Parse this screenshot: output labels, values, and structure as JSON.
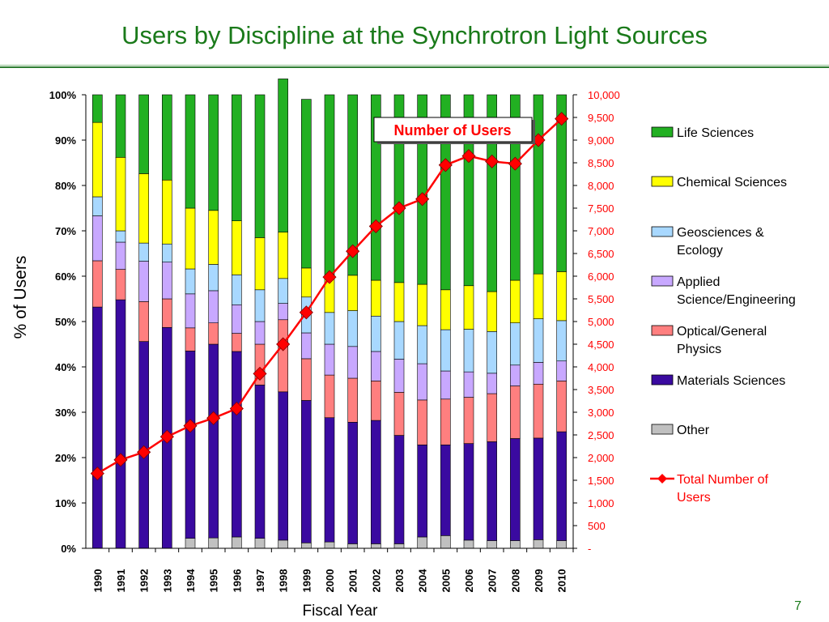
{
  "slide": {
    "title": "Users by Discipline at the Synchrotron Light Sources",
    "page_number": "7"
  },
  "chart_data": {
    "type": "bar",
    "stacked": "100%",
    "title": "",
    "callout": "Number of Users",
    "xlabel": "Fiscal Year",
    "ylabel": "% of Users",
    "y2label": "",
    "ylim": [
      0,
      100
    ],
    "y2lim": [
      0,
      10000
    ],
    "grid": false,
    "legend_position": "right",
    "categories": [
      "1990",
      "1991",
      "1992",
      "1993",
      "1994",
      "1995",
      "1996",
      "1997",
      "1998",
      "1999",
      "2000",
      "2001",
      "2002",
      "2003",
      "2004",
      "2005",
      "2006",
      "2007",
      "2008",
      "2009",
      "2010"
    ],
    "y_ticks": [
      "0%",
      "10%",
      "20%",
      "30%",
      "40%",
      "50%",
      "60%",
      "70%",
      "80%",
      "90%",
      "100%"
    ],
    "y2_ticks": [
      "-",
      "500",
      "1,000",
      "1,500",
      "2,000",
      "2,500",
      "3,000",
      "3,500",
      "4,000",
      "4,500",
      "5,000",
      "5,500",
      "6,000",
      "6,500",
      "7,000",
      "7,500",
      "8,000",
      "8,500",
      "9,000",
      "9,500",
      "10,000"
    ],
    "series": [
      {
        "name": "Other",
        "color": "#c0c0c0",
        "values": [
          0,
          0,
          0,
          0,
          2.2,
          2.3,
          2.5,
          2.2,
          1.8,
          1.2,
          1.4,
          1.0,
          1.0,
          1.0,
          2.5,
          2.8,
          1.8,
          1.7,
          1.7,
          1.9,
          1.7
        ]
      },
      {
        "name": "Materials Sciences",
        "color": "#3a0aa0",
        "values": [
          53.2,
          54.8,
          45.6,
          48.7,
          41.3,
          42.7,
          40.9,
          33.8,
          32.7,
          31.4,
          27.4,
          26.8,
          27.2,
          23.9,
          20.3,
          20.0,
          21.3,
          21.8,
          22.5,
          22.4,
          24.0
        ]
      },
      {
        "name": "Optical/General Physics",
        "color": "#ff7f7f",
        "values": [
          10.2,
          6.7,
          8.8,
          6.3,
          5.1,
          4.7,
          4.0,
          9.0,
          15.9,
          9.2,
          9.4,
          9.7,
          8.7,
          9.5,
          9.9,
          10.1,
          10.2,
          10.6,
          11.6,
          11.9,
          11.2
        ]
      },
      {
        "name": "Applied Science/Engineering",
        "color": "#c8a8ff",
        "values": [
          9.9,
          6.0,
          8.9,
          8.1,
          7.5,
          7.1,
          6.3,
          5.0,
          3.6,
          5.7,
          6.8,
          7.0,
          6.5,
          7.3,
          8.0,
          6.2,
          5.6,
          4.5,
          4.6,
          4.8,
          4.4
        ]
      },
      {
        "name": "Geosciences & Ecology",
        "color": "#a8d8ff",
        "values": [
          4.2,
          2.5,
          4.0,
          4.0,
          5.5,
          5.8,
          6.6,
          7.0,
          5.5,
          7.9,
          7.0,
          7.9,
          7.8,
          8.3,
          8.4,
          9.1,
          9.4,
          9.2,
          9.3,
          9.6,
          8.9
        ]
      },
      {
        "name": "Chemical Sciences",
        "color": "#ffff00",
        "values": [
          16.4,
          16.2,
          15.3,
          14.1,
          13.4,
          11.9,
          11.9,
          11.5,
          10.2,
          6.4,
          8.0,
          7.8,
          7.9,
          8.6,
          9.1,
          8.8,
          9.6,
          8.8,
          9.4,
          9.9,
          10.8
        ]
      },
      {
        "name": "Life Sciences",
        "color": "#22b022",
        "values": [
          6.1,
          13.8,
          17.4,
          18.8,
          25.0,
          25.5,
          27.8,
          31.5,
          33.8,
          37.2,
          40.0,
          39.8,
          40.9,
          41.4,
          41.8,
          43.0,
          42.1,
          43.4,
          40.9,
          39.5,
          39.0
        ]
      }
    ],
    "line_series": {
      "name": "Total Number of Users",
      "color": "#ff0000",
      "values": [
        1650,
        1950,
        2120,
        2460,
        2700,
        2870,
        3080,
        3850,
        4500,
        5200,
        5980,
        6550,
        7100,
        7500,
        7700,
        8450,
        8650,
        8530,
        8480,
        9000,
        9470
      ]
    },
    "legend": [
      {
        "label": "Life Sciences"
      },
      {
        "label": "Chemical Sciences"
      },
      {
        "label": "Geosciences & Ecology"
      },
      {
        "label": "Applied Science/Engineering"
      },
      {
        "label": "Optical/General Physics"
      },
      {
        "label": "Materials Sciences"
      },
      {
        "label": "Other"
      },
      {
        "label": "Total Number of Users"
      }
    ]
  }
}
